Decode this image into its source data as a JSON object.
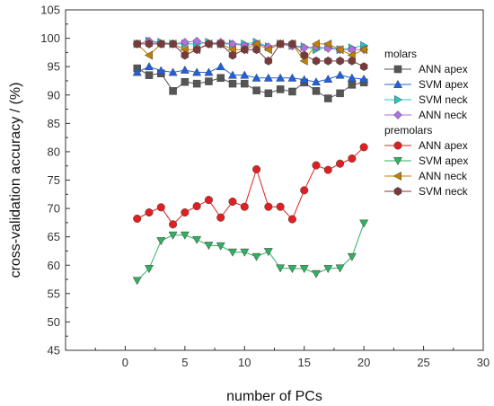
{
  "chart_data": {
    "type": "line",
    "title": "",
    "xlabel": "number of PCs",
    "ylabel": "cross-validation accuracy / (%)",
    "xlim": [
      -5,
      30
    ],
    "ylim": [
      45,
      105
    ],
    "xticks": [
      "0",
      "5",
      "10",
      "15",
      "20",
      "25",
      "30"
    ],
    "yticks": [
      "45",
      "50",
      "55",
      "60",
      "65",
      "70",
      "75",
      "80",
      "85",
      "90",
      "95",
      "100",
      "105"
    ],
    "x": [
      1,
      2,
      3,
      4,
      5,
      6,
      7,
      8,
      9,
      10,
      11,
      12,
      13,
      14,
      15,
      16,
      17,
      18,
      19,
      20
    ],
    "legend_groups": [
      "molars",
      "premolars"
    ],
    "legend_position": "right",
    "grid": false,
    "series": [
      {
        "name": "ANN apex",
        "group": "molars",
        "color": "#555555",
        "marker": "square",
        "values": [
          94.7,
          93.5,
          93.8,
          90.7,
          92.3,
          92.0,
          92.4,
          93.0,
          92.0,
          92.0,
          90.8,
          90.3,
          91.0,
          90.6,
          92.2,
          90.7,
          89.4,
          90.3,
          91.8,
          92.2
        ]
      },
      {
        "name": "SVM apex",
        "group": "molars",
        "color": "#2060e0",
        "marker": "triangle-up",
        "values": [
          94.0,
          95.0,
          94.3,
          94.0,
          94.4,
          94.0,
          94.0,
          95.0,
          93.5,
          93.5,
          93.0,
          93.0,
          93.0,
          93.0,
          92.7,
          92.3,
          92.8,
          93.5,
          93.0,
          92.8
        ]
      },
      {
        "name": "SVM neck",
        "group": "molars",
        "color": "#20c8c8",
        "marker": "triangle-right",
        "values": [
          99.0,
          99.5,
          99.3,
          99.0,
          99.0,
          99.0,
          99.3,
          99.0,
          99.0,
          99.0,
          99.3,
          98.5,
          99.0,
          98.7,
          98.5,
          98.0,
          98.5,
          98.0,
          98.3,
          98.7
        ]
      },
      {
        "name": "ANN neck",
        "group": "molars",
        "color": "#b070e0",
        "marker": "diamond",
        "values": [
          99.0,
          99.5,
          99.0,
          99.0,
          99.3,
          99.5,
          99.0,
          99.3,
          99.0,
          98.7,
          99.0,
          98.5,
          99.0,
          98.6,
          98.3,
          98.5,
          98.2,
          98.0,
          98.0,
          98.0
        ]
      },
      {
        "name": "ANN apex",
        "group": "premolars",
        "color": "#e02020",
        "marker": "circle",
        "values": [
          68.2,
          69.3,
          70.2,
          67.2,
          69.3,
          70.4,
          71.5,
          68.4,
          71.2,
          70.3,
          76.9,
          70.3,
          70.3,
          68.1,
          73.2,
          77.6,
          76.8,
          77.9,
          78.8,
          80.8
        ]
      },
      {
        "name": "SVM apex",
        "group": "premolars",
        "color": "#30b060",
        "marker": "triangle-down",
        "values": [
          57.3,
          59.4,
          64.3,
          65.3,
          65.3,
          64.5,
          63.5,
          63.4,
          62.3,
          62.3,
          61.5,
          62.4,
          59.5,
          59.4,
          59.4,
          58.5,
          59.4,
          59.5,
          61.5,
          67.4
        ]
      },
      {
        "name": "ANN neck",
        "group": "premolars",
        "color": "#c08000",
        "marker": "triangle-left",
        "values": [
          99.0,
          97.0,
          99.0,
          99.0,
          98.0,
          98.0,
          99.0,
          99.0,
          98.0,
          98.0,
          99.0,
          98.0,
          99.0,
          99.0,
          96.0,
          99.0,
          99.0,
          98.0,
          97.0,
          98.0
        ]
      },
      {
        "name": "SVM neck",
        "group": "premolars",
        "color": "#7a3a3a",
        "marker": "hexagon",
        "values": [
          99.0,
          99.0,
          99.0,
          99.0,
          97.0,
          98.0,
          99.0,
          99.0,
          97.0,
          98.0,
          98.0,
          96.0,
          99.0,
          99.0,
          97.0,
          96.0,
          96.0,
          96.0,
          96.0,
          95.0
        ]
      }
    ]
  }
}
